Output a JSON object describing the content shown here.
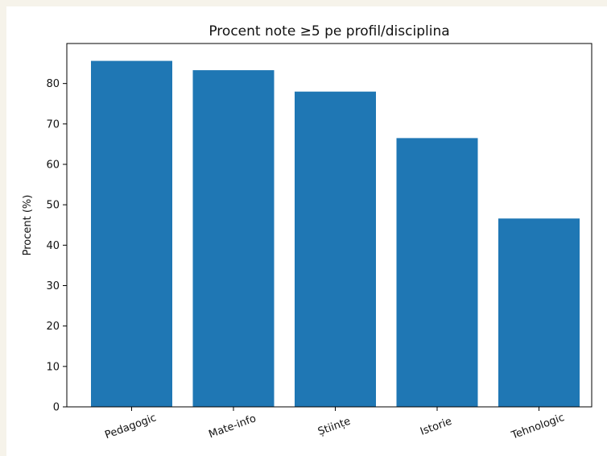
{
  "chart_data": {
    "type": "bar",
    "title": "Procent note ≥5 pe profil/disciplina",
    "xlabel": "",
    "ylabel": "Procent (%)",
    "categories": [
      "Pedagogic",
      "Mate-info",
      "Științe",
      "Istorie",
      "Tehnologic"
    ],
    "values": [
      85.6,
      83.3,
      78.0,
      66.5,
      46.6
    ],
    "ylim": [
      0,
      89.9
    ],
    "yticks": [
      0,
      10,
      20,
      30,
      40,
      50,
      60,
      70,
      80
    ],
    "bar_color": "#1f77b4",
    "grid": false,
    "legend": false
  }
}
